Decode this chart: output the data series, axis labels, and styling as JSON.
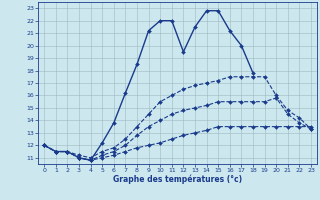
{
  "xlabel": "Graphe des températures (°c)",
  "xlim": [
    -0.5,
    23.5
  ],
  "ylim": [
    10.5,
    23.5
  ],
  "yticks": [
    11,
    12,
    13,
    14,
    15,
    16,
    17,
    18,
    19,
    20,
    21,
    22,
    23
  ],
  "xticks": [
    0,
    1,
    2,
    3,
    4,
    5,
    6,
    7,
    8,
    9,
    10,
    11,
    12,
    13,
    14,
    15,
    16,
    17,
    18,
    19,
    20,
    21,
    22,
    23
  ],
  "bg_color": "#cce8ee",
  "line_color": "#1a3a8c",
  "grid_color": "#a0b8c0",
  "lines": [
    {
      "x": [
        0,
        1,
        2,
        3,
        4,
        5,
        6,
        7,
        8,
        9,
        10,
        11,
        12,
        13,
        14,
        15,
        16,
        17,
        18
      ],
      "y": [
        12,
        11.5,
        11.5,
        11,
        10.8,
        12.2,
        13.8,
        16.2,
        18.5,
        21.2,
        22,
        22,
        19.5,
        21.5,
        22.8,
        22.8,
        21.2,
        20,
        17.8
      ],
      "style": "-",
      "marker": "D",
      "markersize": 2.0,
      "linewidth": 1.0
    },
    {
      "x": [
        0,
        1,
        2,
        3,
        4,
        5,
        6,
        7,
        8,
        9,
        10,
        11,
        12,
        13,
        14,
        15,
        16,
        17,
        18,
        19,
        20,
        21,
        22,
        23
      ],
      "y": [
        12,
        11.5,
        11.5,
        11.2,
        11.0,
        11.5,
        11.8,
        12.5,
        13.5,
        14.5,
        15.5,
        16.0,
        16.5,
        16.8,
        17.0,
        17.2,
        17.5,
        17.5,
        17.5,
        17.5,
        16.0,
        14.8,
        14.2,
        13.3
      ],
      "style": "--",
      "marker": "D",
      "markersize": 2.0,
      "linewidth": 0.8
    },
    {
      "x": [
        0,
        1,
        2,
        3,
        4,
        5,
        6,
        7,
        8,
        9,
        10,
        11,
        12,
        13,
        14,
        15,
        16,
        17,
        18,
        19,
        20,
        21,
        22,
        23
      ],
      "y": [
        12,
        11.5,
        11.5,
        11.0,
        10.8,
        11.2,
        11.5,
        12.0,
        12.8,
        13.5,
        14.0,
        14.5,
        14.8,
        15.0,
        15.2,
        15.5,
        15.5,
        15.5,
        15.5,
        15.5,
        15.8,
        14.5,
        13.8,
        13.3
      ],
      "style": "--",
      "marker": "D",
      "markersize": 2.0,
      "linewidth": 0.8
    },
    {
      "x": [
        0,
        1,
        2,
        3,
        4,
        5,
        6,
        7,
        8,
        9,
        10,
        11,
        12,
        13,
        14,
        15,
        16,
        17,
        18,
        19,
        20,
        21,
        22,
        23
      ],
      "y": [
        12,
        11.5,
        11.5,
        11.0,
        10.8,
        11.0,
        11.2,
        11.5,
        11.8,
        12.0,
        12.2,
        12.5,
        12.8,
        13.0,
        13.2,
        13.5,
        13.5,
        13.5,
        13.5,
        13.5,
        13.5,
        13.5,
        13.5,
        13.5
      ],
      "style": "--",
      "marker": "D",
      "markersize": 2.0,
      "linewidth": 0.8
    }
  ]
}
